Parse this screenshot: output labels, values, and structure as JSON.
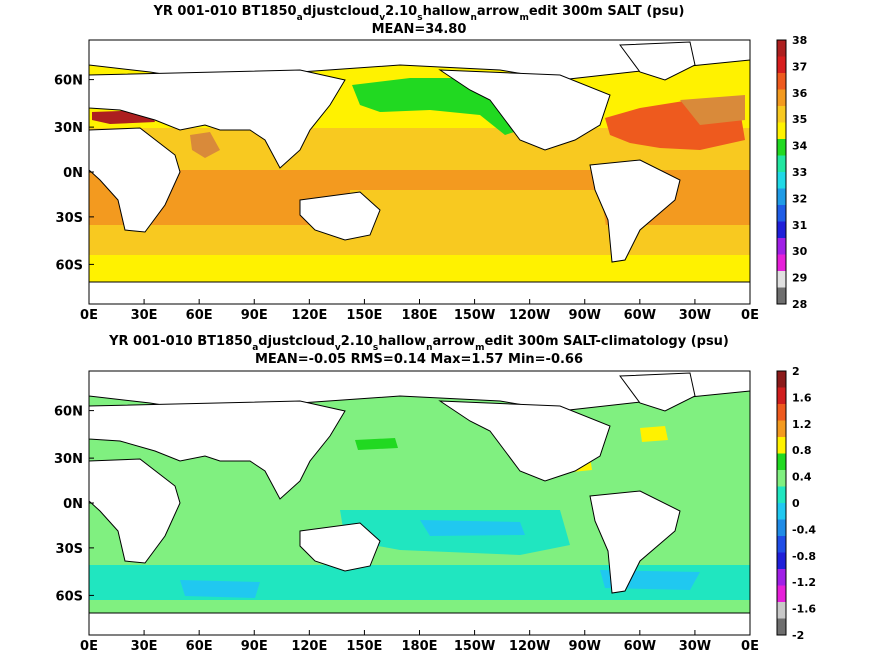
{
  "chart_data": [
    {
      "type": "heatmap",
      "title_parts": [
        {
          "t": "YR 001-010 BT1850"
        },
        {
          "t": "a",
          "sub": true
        },
        {
          "t": "djustcloud"
        },
        {
          "t": "v",
          "sub": true
        },
        {
          "t": "2.10"
        },
        {
          "t": "s",
          "sub": true
        },
        {
          "t": "hallow"
        },
        {
          "t": "n",
          "sub": true
        },
        {
          "t": "arrow"
        },
        {
          "t": "m",
          "sub": true
        },
        {
          "t": "edit 300m SALT (psu)"
        }
      ],
      "subtitle": "MEAN=34.80",
      "x_ticks": [
        "0E",
        "30E",
        "60E",
        "90E",
        "120E",
        "150E",
        "180E",
        "150W",
        "120W",
        "90W",
        "60W",
        "30W",
        "0E"
      ],
      "y_ticks": [
        "60N",
        "30N",
        "0N",
        "30S",
        "60S"
      ],
      "colorbar_ticks": [
        "38",
        "37",
        "36",
        "35",
        "34",
        "33",
        "32",
        "31",
        "30",
        "29",
        "28"
      ],
      "colorbar_colors": [
        "#ad1f1f",
        "#d71e1e",
        "#ee5a1e",
        "#f39a1f",
        "#f8c920",
        "#fff200",
        "#21d921",
        "#21e6a0",
        "#20d9e6",
        "#1f9be6",
        "#1f5de6",
        "#1f1fd9",
        "#a01fe6",
        "#e61fd9",
        "#e0e0e0",
        "#6e6e6e"
      ]
    },
    {
      "type": "heatmap",
      "title_parts": [
        {
          "t": "YR 001-010 BT1850"
        },
        {
          "t": "a",
          "sub": true
        },
        {
          "t": "djustcloud"
        },
        {
          "t": "v",
          "sub": true
        },
        {
          "t": "2.10"
        },
        {
          "t": "s",
          "sub": true
        },
        {
          "t": "hallow"
        },
        {
          "t": "n",
          "sub": true
        },
        {
          "t": "arrow"
        },
        {
          "t": "m",
          "sub": true
        },
        {
          "t": "edit 300m SALT-climatology (psu)"
        }
      ],
      "subtitle": "MEAN=-0.05   RMS=0.14   Max=1.57   Min=-0.66",
      "x_ticks": [
        "0E",
        "30E",
        "60E",
        "90E",
        "120E",
        "150E",
        "180E",
        "150W",
        "120W",
        "90W",
        "60W",
        "30W",
        "0E"
      ],
      "y_ticks": [
        "60N",
        "30N",
        "0N",
        "30S",
        "60S"
      ],
      "colorbar_ticks": [
        "2",
        "1.6",
        "1.2",
        "0.8",
        "0.4",
        "0",
        "-0.4",
        "-0.8",
        "-1.2",
        "-1.6",
        "-2"
      ],
      "colorbar_colors": [
        "#8b1a1a",
        "#d01e1e",
        "#ee5a1e",
        "#f39a1f",
        "#fff200",
        "#21d921",
        "#80f080",
        "#20e6c0",
        "#20c8f0",
        "#1f8be6",
        "#1f4de6",
        "#1f1fd9",
        "#a01fe6",
        "#e61fd9",
        "#c8c8c8",
        "#6e6e6e"
      ]
    }
  ],
  "colors": {
    "land": "#ffffff",
    "coast": "#000000",
    "sea_ice": "#ffffff"
  }
}
